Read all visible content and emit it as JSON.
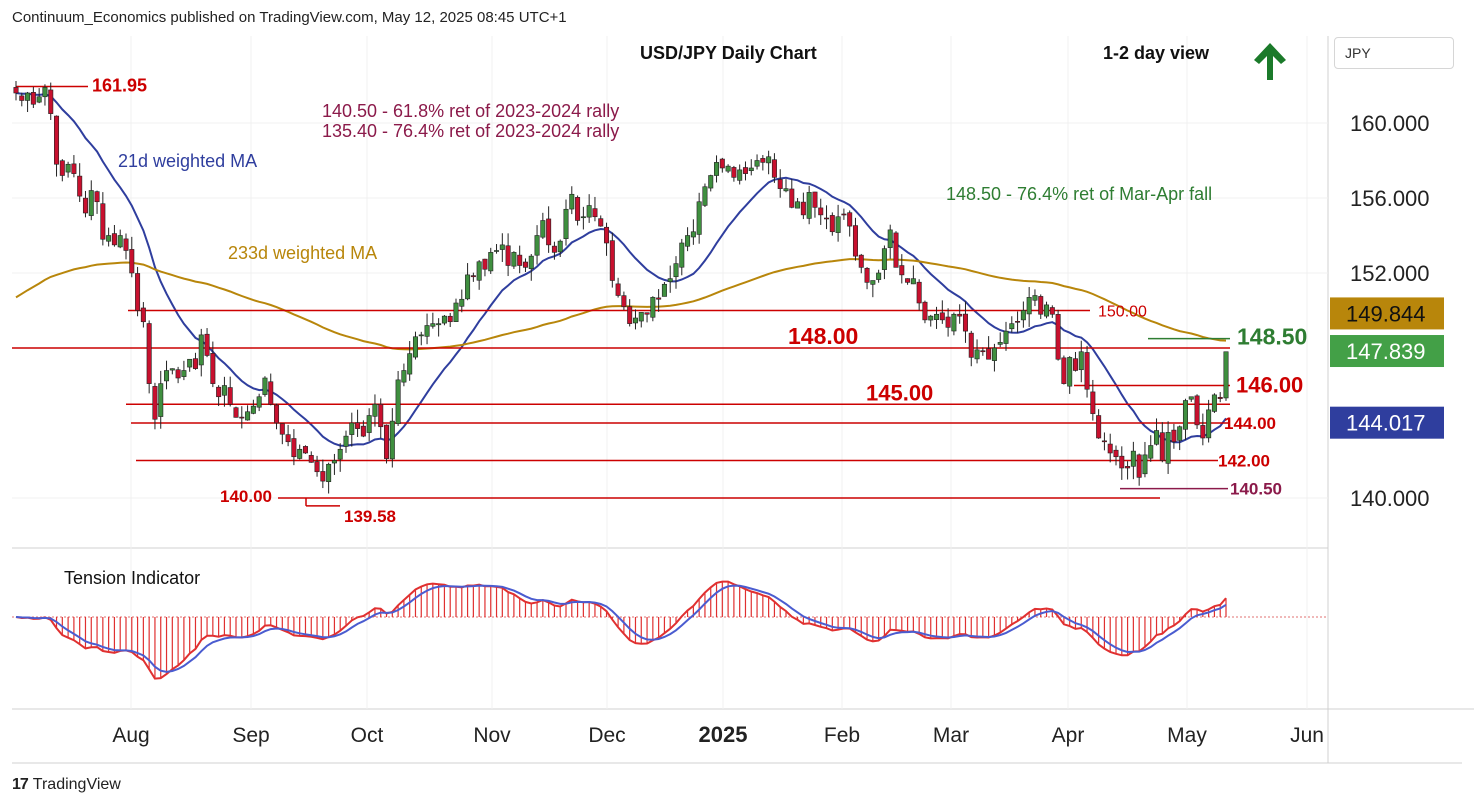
{
  "header": {
    "published": "Continuum_Economics published on TradingView.com, May 12, 2025 08:45 UTC+1",
    "currency_selector": "JPY",
    "brand": "TradingView"
  },
  "colors": {
    "up_candle": "#3f8f3f",
    "down_candle": "#c8102e",
    "ma21": "#2f3e9e",
    "ma233": "#b8860b",
    "level": "#cc0000",
    "maroon_text": "#8b1a4a",
    "green_text": "#2e7d32",
    "hist": "#e03030",
    "signal": "#4a5cd0"
  },
  "chart_data": [
    {
      "type": "candlestick",
      "title": "USD/JPY Daily Chart",
      "subtitle": "1-2 day view",
      "view_direction": "up",
      "x_tick_labels": [
        "Aug",
        "Sep",
        "Oct",
        "Nov",
        "Dec",
        "2025",
        "Feb",
        "Mar",
        "Apr",
        "May",
        "Jun"
      ],
      "y_tick_labels": [
        "160.000",
        "156.000",
        "152.000",
        "140.000"
      ],
      "ylim": [
        136.5,
        163.8
      ],
      "price_tags": [
        {
          "label": "149.844",
          "value": 149.844,
          "color": "#b8860b"
        },
        {
          "label": "147.839",
          "value": 147.839,
          "color": "#43a047"
        },
        {
          "label": "144.017",
          "value": 144.017,
          "color": "#2f3e9e"
        }
      ],
      "levels": [
        {
          "value": 161.95,
          "label": "161.95",
          "bold": false
        },
        {
          "value": 150.0,
          "label": "150.00",
          "bold": false
        },
        {
          "value": 148.0,
          "label": "148.00",
          "bold": true
        },
        {
          "value": 146.0,
          "label": "146.00",
          "bold": true
        },
        {
          "value": 145.0,
          "label": "145.00",
          "bold": true
        },
        {
          "value": 144.0,
          "label": "144.00",
          "bold": false
        },
        {
          "value": 142.0,
          "label": "142.00",
          "bold": false
        },
        {
          "value": 140.0,
          "label": "140.00",
          "bold": false
        },
        {
          "value": 139.58,
          "label": "139.58",
          "bold": false
        },
        {
          "value": 148.5,
          "label": "148.50",
          "bold": true
        },
        {
          "value": 140.5,
          "label": "140.50",
          "bold": false
        }
      ],
      "annotations": [
        "140.50 - 61.8% ret of 2023-2024 rally",
        "135.40 - 76.4% ret of 2023-2024 rally",
        "148.50 - 76.4% ret of Mar-Apr fall",
        "21d weighted MA",
        "233d weighted MA"
      ],
      "series_close": [
        161.6,
        161.2,
        161.6,
        161.0,
        161.4,
        161.9,
        160.5,
        157.8,
        157.2,
        157.8,
        157.3,
        156.1,
        155.2,
        156.4,
        155.8,
        153.8,
        154.0,
        153.5,
        154.0,
        153.2,
        152.0,
        150.0,
        149.4,
        146.1,
        144.2,
        146.1,
        146.8,
        146.9,
        146.4,
        146.8,
        147.4,
        146.9,
        148.7,
        147.6,
        146.1,
        145.4,
        146.0,
        145.0,
        144.3,
        144.3,
        144.6,
        144.9,
        145.4,
        146.4,
        145.0,
        144.0,
        143.4,
        143.0,
        142.2,
        142.6,
        142.4,
        141.9,
        141.4,
        140.9,
        141.8,
        142.0,
        142.6,
        143.3,
        144.0,
        143.7,
        143.3,
        144.4,
        145.0,
        143.8,
        142.1,
        144.1,
        146.3,
        146.8,
        147.7,
        148.6,
        148.7,
        149.2,
        149.3,
        149.3,
        149.7,
        149.4,
        150.4,
        150.6,
        151.9,
        151.8,
        152.6,
        152.2,
        153.1,
        153.2,
        153.5,
        152.4,
        153.1,
        152.4,
        152.3,
        152.9,
        154.0,
        154.8,
        153.5,
        153.1,
        153.7,
        155.4,
        156.2,
        154.8,
        155.0,
        155.6,
        155.0,
        154.5,
        153.6,
        151.6,
        150.8,
        150.2,
        149.3,
        149.6,
        149.9,
        149.8,
        150.7,
        150.6,
        151.4,
        151.7,
        152.5,
        153.6,
        154.0,
        154.2,
        155.8,
        156.6,
        157.2,
        157.9,
        157.6,
        157.7,
        157.1,
        157.5,
        157.3,
        157.6,
        158.0,
        157.9,
        158.2,
        157.1,
        156.5,
        156.5,
        155.5,
        155.8,
        155.1,
        156.3,
        155.5,
        155.1,
        154.9,
        154.2,
        155.0,
        155.1,
        154.5,
        152.9,
        152.3,
        151.5,
        151.6,
        152.0,
        153.3,
        154.3,
        152.3,
        151.9,
        151.5,
        151.7,
        150.4,
        149.5,
        149.7,
        149.8,
        149.5,
        149.1,
        149.8,
        149.7,
        148.9,
        147.5,
        147.9,
        147.8,
        147.4,
        148.0,
        148.3,
        148.9,
        149.3,
        149.4,
        150.0,
        150.7,
        150.8,
        149.8,
        150.3,
        149.8,
        147.4,
        146.1,
        147.5,
        146.8,
        147.8,
        145.8,
        144.5,
        143.2,
        143.0,
        142.4,
        142.2,
        141.6,
        141.6,
        142.5,
        141.1,
        142.3,
        142.8,
        143.6,
        142.0,
        143.5,
        143.0,
        143.8,
        145.2,
        145.4,
        143.9,
        143.2,
        144.7,
        145.5,
        145.3,
        147.8
      ]
    },
    {
      "type": "area",
      "title": "Tension Indicator"
    }
  ]
}
